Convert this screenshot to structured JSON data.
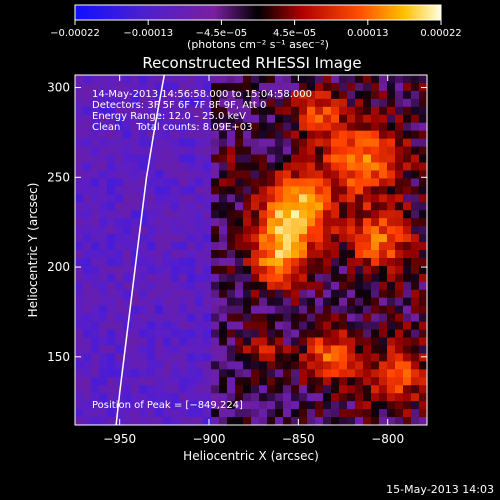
{
  "chart_data": {
    "type": "heatmap",
    "title": "Reconstructed RHESSI Image",
    "xlabel": "Heliocentric X (arcsec)",
    "ylabel": "Heliocentric Y (arcsec)",
    "xlim": [
      -975,
      -778
    ],
    "ylim": [
      112,
      307
    ],
    "x_ticks": [
      -950,
      -900,
      -850,
      -800
    ],
    "x_tick_labels": [
      "−950",
      "−900",
      "−850",
      "−800"
    ],
    "y_ticks": [
      150,
      200,
      250,
      300
    ],
    "y_tick_labels": [
      "150",
      "200",
      "250",
      "300"
    ],
    "colorbar": {
      "range": [
        -0.00022,
        0.00022
      ],
      "tick_labels": [
        "−0.00022",
        "−0.00013",
        "−4.5e−05",
        "4.5e−05",
        "0.00013",
        "0.00022"
      ],
      "units_label": "(photons cm⁻² s⁻¹ asec⁻²)"
    },
    "annotations": [
      "14‑May‑2013 14:56:58.000 to 15:04:58.000",
      "Detectors: 3F 5F 6F 7F 8F 9F, Att 0",
      "Energy Range: 12.0 – 25.0 keV",
      "Clean     Total counts: 8.09E+03"
    ],
    "peak_label": "Position of Peak = [−849,224]",
    "peak": [
      -849,
      224
    ],
    "sources": [
      {
        "x": -852,
        "y": 232,
        "sigma": 14,
        "amp": 1.0
      },
      {
        "x": -862,
        "y": 205,
        "sigma": 12,
        "amp": 0.75
      },
      {
        "x": -815,
        "y": 260,
        "sigma": 14,
        "amp": 0.7
      },
      {
        "x": -805,
        "y": 215,
        "sigma": 12,
        "amp": 0.6
      },
      {
        "x": -832,
        "y": 150,
        "sigma": 10,
        "amp": 0.65
      },
      {
        "x": -870,
        "y": 155,
        "sigma": 9,
        "amp": 0.35
      },
      {
        "x": -840,
        "y": 285,
        "sigma": 10,
        "amp": 0.55
      },
      {
        "x": -795,
        "y": 140,
        "sigma": 12,
        "amp": 0.5
      },
      {
        "x": -885,
        "y": 255,
        "sigma": 8,
        "amp": 0.3
      }
    ],
    "limb_arc": [
      [
        -925,
        307
      ],
      [
        -930,
        280
      ],
      [
        -935,
        250
      ],
      [
        -940,
        210
      ],
      [
        -945,
        170
      ],
      [
        -950,
        130
      ],
      [
        -952,
        112
      ]
    ]
  },
  "footer": {
    "timestamp": "15‑May‑2013 14:03"
  }
}
